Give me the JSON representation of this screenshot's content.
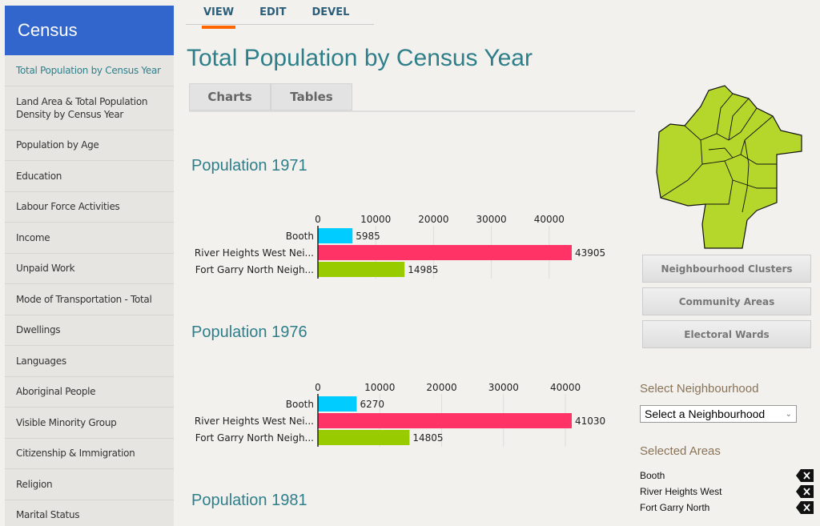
{
  "brand": "Census",
  "sidebar": {
    "items": [
      {
        "label": "Total Population by Census Year",
        "active": true
      },
      {
        "label": "Land Area & Total Population Density by Census Year"
      },
      {
        "label": "Population by Age"
      },
      {
        "label": "Education"
      },
      {
        "label": "Labour Force Activities"
      },
      {
        "label": "Income"
      },
      {
        "label": "Unpaid Work"
      },
      {
        "label": "Mode of Transportation - Total"
      },
      {
        "label": "Dwellings"
      },
      {
        "label": "Languages"
      },
      {
        "label": "Aboriginal People"
      },
      {
        "label": "Visible Minority Group"
      },
      {
        "label": "Citizenship & Immigration"
      },
      {
        "label": "Religion"
      },
      {
        "label": "Marital Status"
      }
    ]
  },
  "topnav": [
    "VIEW",
    "EDIT",
    "DEVEL"
  ],
  "page_title": "Total Population by Census Year",
  "tabs": [
    "Charts",
    "Tables"
  ],
  "sections": [
    "Population 1971",
    "Population 1976",
    "Population 1981"
  ],
  "colors": {
    "Booth": "#00ccff",
    "River Heights West": "#ff3366",
    "Fort Garry North": "#99cc00",
    "map": "#b5d62a"
  },
  "chart_data": [
    {
      "type": "bar",
      "orientation": "horizontal",
      "title": "Population 1971",
      "categories": [
        "Booth",
        "River Heights West Nei...",
        "Fort Garry North Neigh..."
      ],
      "values": [
        5985,
        43905,
        14985
      ],
      "ticks": [
        0,
        10000,
        20000,
        30000,
        40000
      ],
      "colors": [
        "#00ccff",
        "#ff3366",
        "#99cc00"
      ]
    },
    {
      "type": "bar",
      "orientation": "horizontal",
      "title": "Population 1976",
      "categories": [
        "Booth",
        "River Heights West Nei...",
        "Fort Garry North Neigh..."
      ],
      "values": [
        6270,
        41030,
        14805
      ],
      "ticks": [
        0,
        10000,
        20000,
        30000,
        40000
      ],
      "colors": [
        "#00ccff",
        "#ff3366",
        "#99cc00"
      ]
    }
  ],
  "right": {
    "buttons": [
      "Neighbourhood Clusters",
      "Community Areas",
      "Electoral Wards"
    ],
    "select_heading": "Select Neighbourhood",
    "select_value": "Select a Neighbourhood",
    "selected_heading": "Selected Areas",
    "selected": [
      "Booth",
      "River Heights West",
      "Fort Garry North"
    ]
  }
}
